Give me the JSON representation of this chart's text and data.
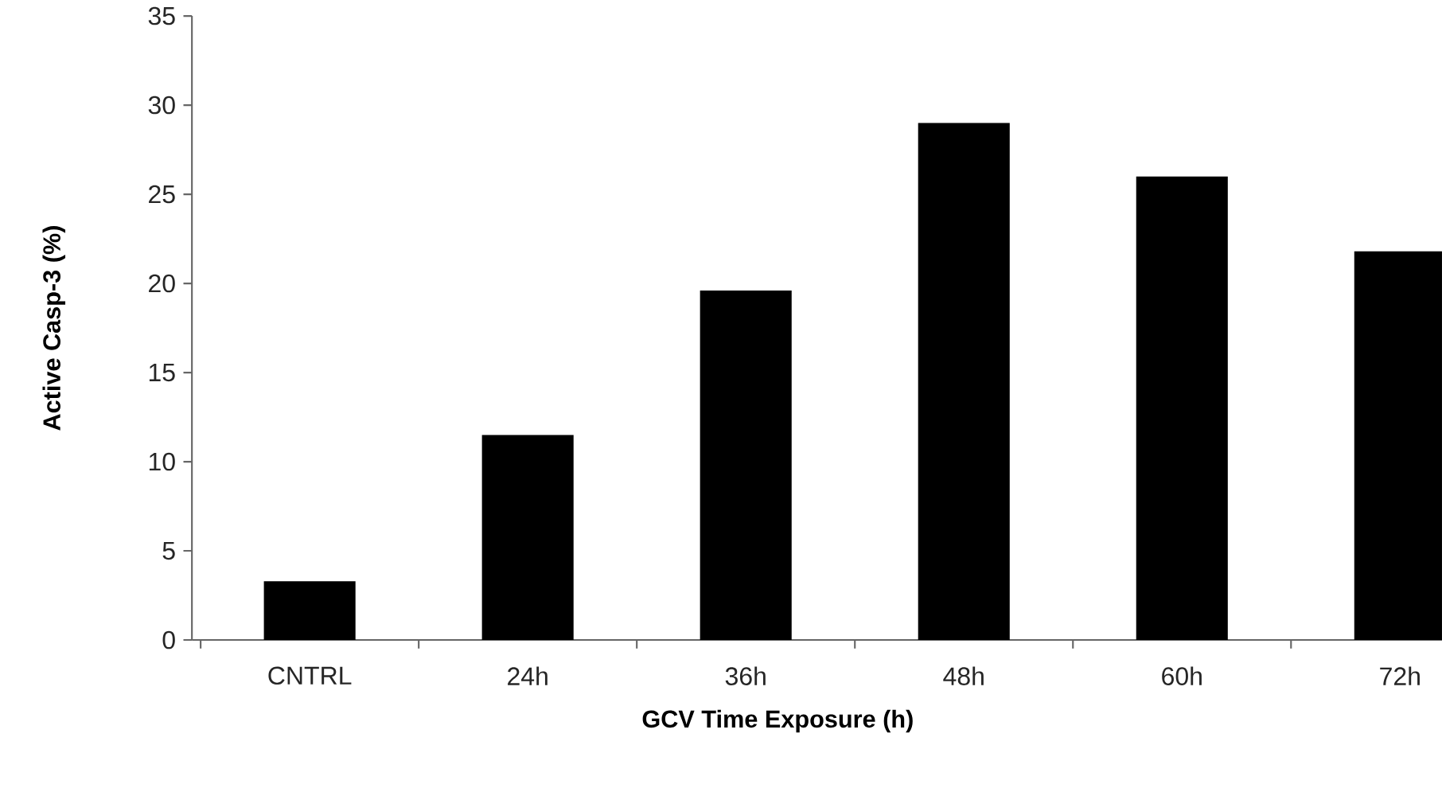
{
  "chart_data": {
    "type": "bar",
    "xlabel": "GCV Time Exposure (h)",
    "ylabel": "Active Casp-3 (%)",
    "categories": [
      "CNTRL",
      "24h",
      "36h",
      "48h",
      "60h",
      "72h"
    ],
    "values": [
      3.3,
      11.5,
      19.6,
      29.0,
      26.0,
      21.8
    ],
    "color": "#000000",
    "ylim": [
      0,
      35
    ],
    "yticks": [
      0,
      5,
      10,
      15,
      20,
      25,
      30,
      35
    ]
  }
}
